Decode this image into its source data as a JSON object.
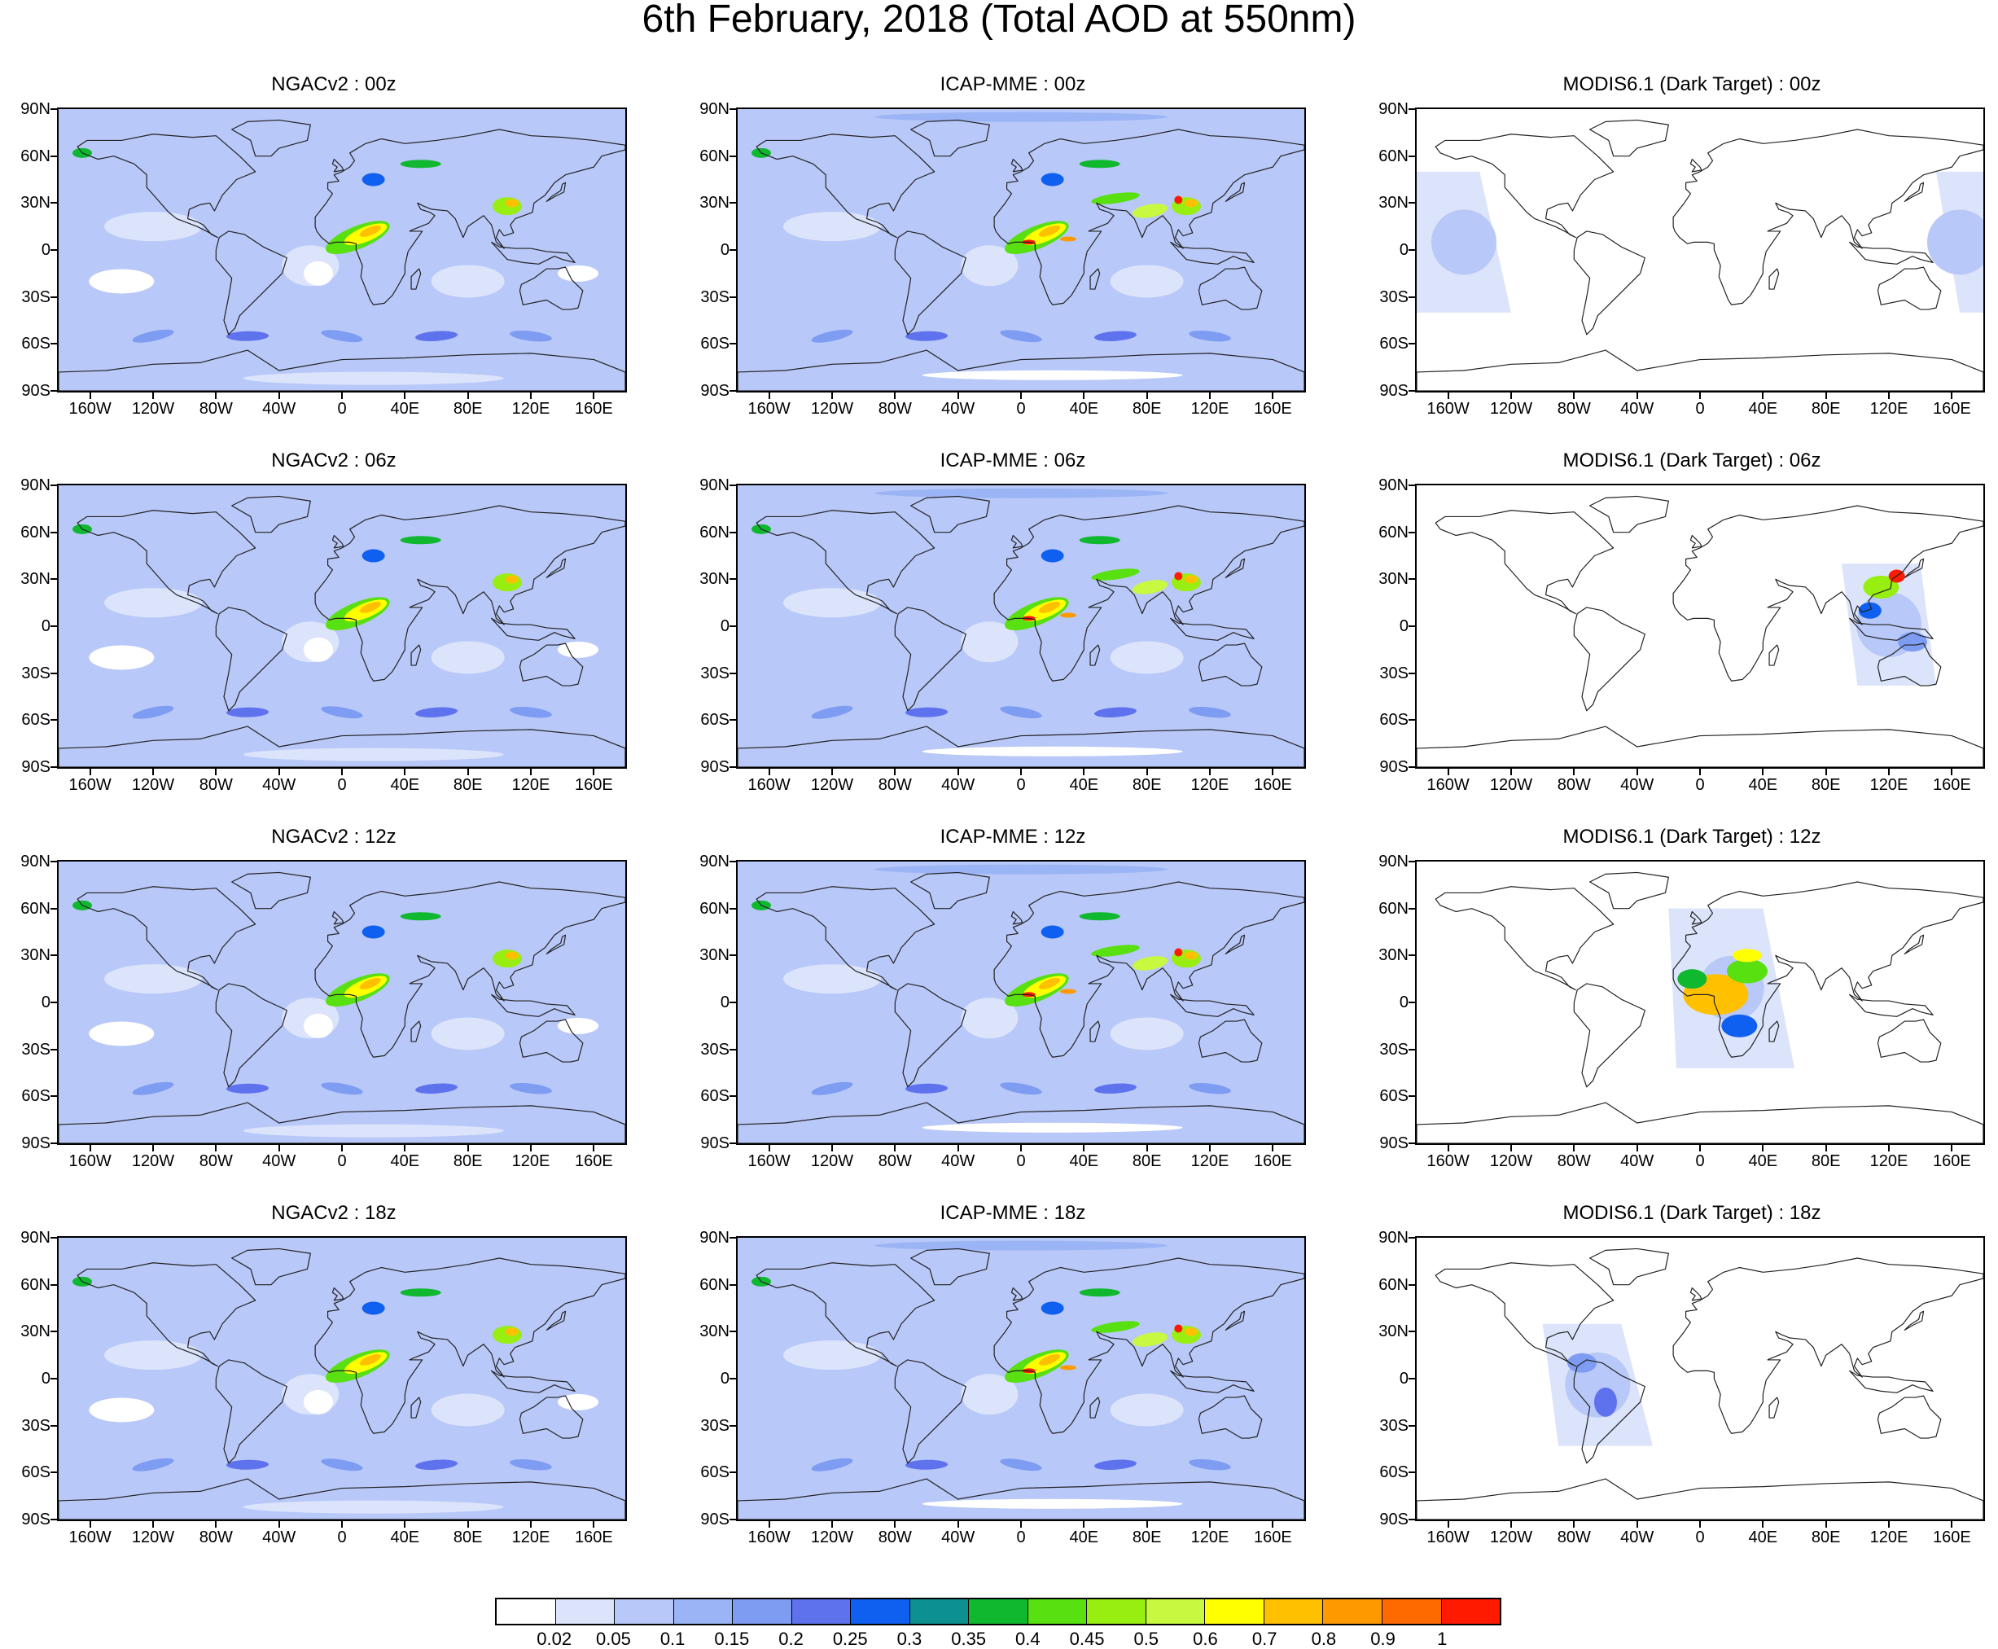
{
  "title": "6th February, 2018 (Total AOD at 550nm)",
  "lat_labels": [
    "90N",
    "60N",
    "30N",
    "0",
    "30S",
    "60S",
    "90S"
  ],
  "lon_labels": [
    "160W",
    "120W",
    "80W",
    "40W",
    "0",
    "40E",
    "80E",
    "120E",
    "160E"
  ],
  "lon_values": [
    -160,
    -120,
    -80,
    -40,
    0,
    40,
    80,
    120,
    160
  ],
  "lat_values": [
    90,
    60,
    30,
    0,
    -30,
    -60,
    -90
  ],
  "panels": [
    {
      "title": "NGACv2 : 00z",
      "model": "ngac",
      "hour": 0
    },
    {
      "title": "ICAP-MME : 00z",
      "model": "icap",
      "hour": 0
    },
    {
      "title": "MODIS6.1 (Dark Target) : 00z",
      "model": "modis",
      "hour": 0
    },
    {
      "title": "NGACv2 : 06z",
      "model": "ngac",
      "hour": 6
    },
    {
      "title": "ICAP-MME : 06z",
      "model": "icap",
      "hour": 6
    },
    {
      "title": "MODIS6.1 (Dark Target) : 06z",
      "model": "modis",
      "hour": 6
    },
    {
      "title": "NGACv2 : 12z",
      "model": "ngac",
      "hour": 12
    },
    {
      "title": "ICAP-MME : 12z",
      "model": "icap",
      "hour": 12
    },
    {
      "title": "MODIS6.1 (Dark Target) : 12z",
      "model": "modis",
      "hour": 12
    },
    {
      "title": "NGACv2 : 18z",
      "model": "ngac",
      "hour": 18
    },
    {
      "title": "ICAP-MME : 18z",
      "model": "icap",
      "hour": 18
    },
    {
      "title": "MODIS6.1 (Dark Target) : 18z",
      "model": "modis",
      "hour": 18
    }
  ],
  "colorbar": {
    "labels": [
      "0.02",
      "0.05",
      "0.1",
      "0.15",
      "0.2",
      "0.25",
      "0.3",
      "0.35",
      "0.4",
      "0.45",
      "0.5",
      "0.6",
      "0.7",
      "0.8",
      "0.9",
      "1"
    ],
    "colors": [
      "#ffffff",
      "#dce4fb",
      "#b8c8f8",
      "#9ab4f6",
      "#7d9cf2",
      "#5f72ee",
      "#0f5ff0",
      "#0c9090",
      "#10b830",
      "#58e010",
      "#98ee10",
      "#c8f840",
      "#ffff00",
      "#ffc000",
      "#ff9900",
      "#ff6a00",
      "#ff1a00"
    ]
  },
  "modis_swaths": {
    "0": [
      [
        [
          -180,
          50
        ],
        [
          -140,
          50
        ],
        [
          -120,
          -40
        ],
        [
          -180,
          -40
        ]
      ],
      [
        [
          150,
          50
        ],
        [
          180,
          50
        ],
        [
          180,
          -40
        ],
        [
          165,
          -40
        ]
      ]
    ],
    "6": [
      [
        [
          90,
          40
        ],
        [
          140,
          40
        ],
        [
          150,
          -38
        ],
        [
          100,
          -38
        ]
      ]
    ],
    "12": [
      [
        [
          -20,
          60
        ],
        [
          40,
          60
        ],
        [
          60,
          -42
        ],
        [
          -15,
          -42
        ]
      ]
    ],
    "18": [
      [
        [
          -100,
          35
        ],
        [
          -50,
          35
        ],
        [
          -30,
          -43
        ],
        [
          -90,
          -43
        ]
      ]
    ]
  }
}
